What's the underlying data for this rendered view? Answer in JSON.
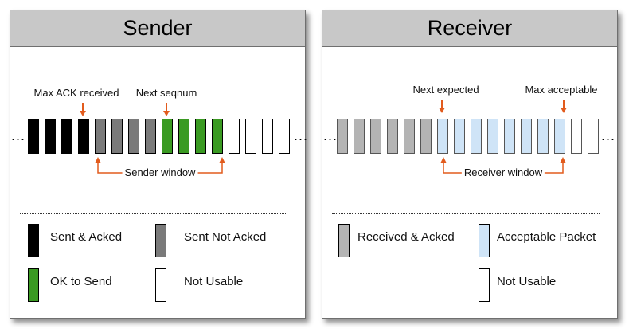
{
  "colors": {
    "sent_acked": "#000000",
    "sent_not_acked": "#7a7a7a",
    "ok_to_send": "#3a9a22",
    "not_usable": "#ffffff",
    "received_acked": "#b4b4b4",
    "acceptable": "#cfe4f7",
    "arrow": "#e25b1d"
  },
  "sender": {
    "title": "Sender",
    "ellipsis_left": "...",
    "ellipsis_right": "...",
    "max_ack_label": "Max ACK received",
    "next_seqnum_label": "Next seqnum",
    "window_label": "Sender window",
    "packets": [
      "sent_acked",
      "sent_acked",
      "sent_acked",
      "sent_acked",
      "sent_not_acked",
      "sent_not_acked",
      "sent_not_acked",
      "sent_not_acked",
      "ok_to_send",
      "ok_to_send",
      "ok_to_send",
      "ok_to_send",
      "not_usable",
      "not_usable",
      "not_usable",
      "not_usable"
    ],
    "legend": {
      "sent_acked": "Sent & Acked",
      "sent_not_acked": "Sent Not Acked",
      "ok_to_send": "OK to Send",
      "not_usable": "Not Usable"
    }
  },
  "receiver": {
    "title": "Receiver",
    "ellipsis_left": "...",
    "ellipsis_right": "...",
    "next_expected_label": "Next expected",
    "max_acceptable_label": "Max acceptable",
    "window_label": "Receiver window",
    "packets": [
      "received_acked",
      "received_acked",
      "received_acked",
      "received_acked",
      "received_acked",
      "received_acked",
      "acceptable",
      "acceptable",
      "acceptable",
      "acceptable",
      "acceptable",
      "acceptable",
      "acceptable",
      "acceptable",
      "not_usable",
      "not_usable"
    ],
    "legend": {
      "received_acked": "Received & Acked",
      "acceptable": "Acceptable Packet",
      "not_usable": "Not Usable"
    }
  }
}
